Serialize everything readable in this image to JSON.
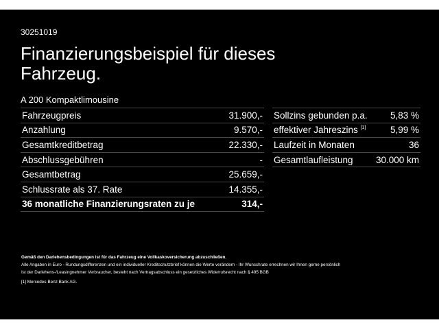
{
  "code": "30251019",
  "title": "Finanzierungsbeispiel für dieses Fahrzeug.",
  "model": "A 200 Kompaktlimousine",
  "left_rows": [
    {
      "label": "Fahrzeugpreis",
      "value": "31.900,-"
    },
    {
      "label": "Anzahlung",
      "value": "9.570,-"
    },
    {
      "label": "Gesamtkreditbetrag",
      "value": "22.330,-"
    },
    {
      "label": "Abschlussgebühren",
      "value": "-"
    },
    {
      "label": "Gesamtbetrag",
      "value": "25.659,-"
    },
    {
      "label": "Schlussrate als 37. Rate",
      "value": "14.355,-"
    },
    {
      "label": "36 monatliche Finanzierungsraten zu je",
      "value": "314,-"
    }
  ],
  "right_rows": [
    {
      "label": "Sollzins gebunden p.a.",
      "value": "5,83 %"
    },
    {
      "label": "effektiver Jahreszins",
      "sup": "[1]",
      "value": "5,99 %"
    },
    {
      "label": "Laufzeit in Monaten",
      "value": "36"
    },
    {
      "label": "Gesamtlaufleistung",
      "value": "30.000 km"
    }
  ],
  "notes": {
    "bold": "Gemäß den Darlehensbedingungen ist für das Fahrzeug eine Vollkaskoversicherung abzuschließen.",
    "line1": "Alle Angaben in Euro - Rundungsdifferenzen und ein individueller Kreditschutzbrief können die Werte verändern - Ihr Wunschrate errechnen wir Ihnen gerne persönlich",
    "line2": "Ist der Darlehens-/Leasingnehmer Verbraucher, besteht nach Vertragsabschluss ein gesetzliches Widerrufsrecht nach § 495 BGB",
    "footnote": "[1]  Mercedes-Benz Bank AG."
  }
}
